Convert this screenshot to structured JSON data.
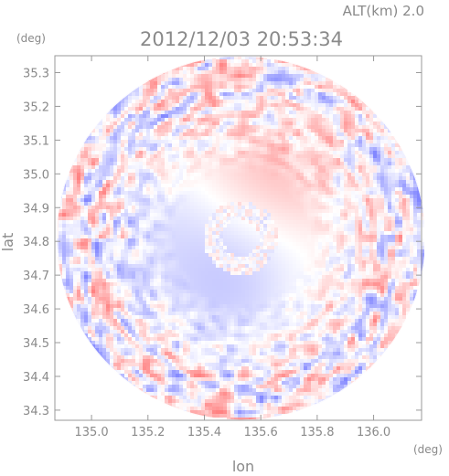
{
  "header": {
    "altitude_label": "ALT(km) 2.0",
    "timestamp": "2012/12/03 20:53:34",
    "y_unit": "(deg)",
    "x_unit": "(deg)"
  },
  "chart_data": {
    "type": "heatmap",
    "title": "2012/12/03 20:53:34",
    "xlabel": "lon",
    "ylabel": "lat",
    "x_unit": "(deg)",
    "y_unit": "(deg)",
    "xlim": [
      134.87,
      136.17
    ],
    "ylim": [
      34.27,
      35.35
    ],
    "x_ticks": [
      "135.0",
      "135.2",
      "135.4",
      "135.6",
      "135.8",
      "136.0"
    ],
    "y_ticks": [
      "34.3",
      "34.4",
      "34.5",
      "34.6",
      "34.7",
      "34.8",
      "34.9",
      "35.0",
      "35.1",
      "35.2",
      "35.3"
    ],
    "center": {
      "lon": 135.53,
      "lat": 34.81
    },
    "extent_radius_deg": {
      "lon": 0.655,
      "lat": 0.54
    },
    "grid": false,
    "colors": {
      "positive": "#f08080",
      "negative": "#8a8af0",
      "neutral": "#ffffff",
      "frame": "#9a9a9a"
    }
  }
}
